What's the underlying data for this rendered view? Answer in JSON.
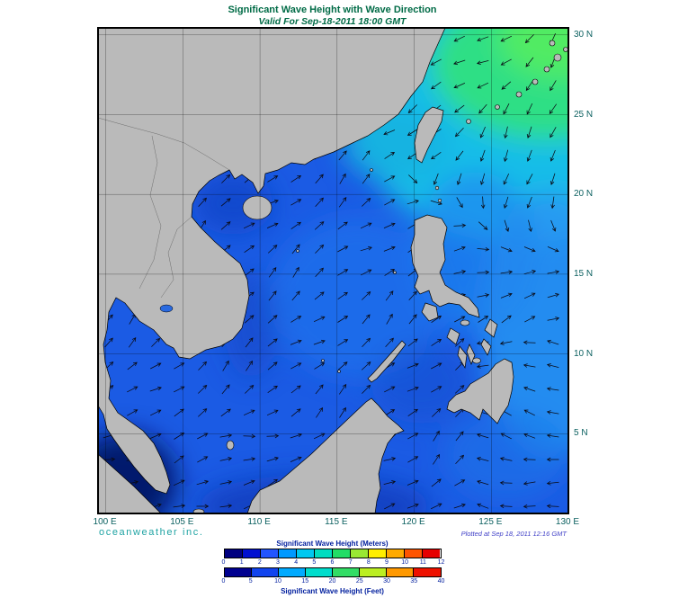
{
  "header": {
    "title": "Significant Wave Height with Wave Direction",
    "subtitle": "Valid For Sep-18-2011 18:00 GMT"
  },
  "map": {
    "lat_labels": [
      "30 N",
      "25 N",
      "20 N",
      "15 N",
      "10 N",
      "5 N"
    ],
    "lon_labels": [
      "100 E",
      "105 E",
      "110 E",
      "115 E",
      "120 E",
      "125 E",
      "130 E"
    ]
  },
  "footer": {
    "branding": "oceanweather inc.",
    "plotted_note": "Plotted at Sep 18, 2011 12:16 GMT"
  },
  "legend": {
    "meters_title": "Significant Wave Height (Meters)",
    "feet_title": "Significant Wave Height (Feet)",
    "meters_ticks": [
      "0",
      "1",
      "2",
      "3",
      "4",
      "5",
      "6",
      "7",
      "8",
      "9",
      "10",
      "11",
      "12"
    ],
    "feet_ticks": [
      "0",
      "5",
      "10",
      "15",
      "20",
      "25",
      "30",
      "35",
      "40"
    ],
    "meters_colors": [
      "#000080",
      "#0010d0",
      "#2255ff",
      "#0099ff",
      "#00c8f0",
      "#00ddc0",
      "#22dd66",
      "#99e833",
      "#ffee00",
      "#ffaa00",
      "#ff5500",
      "#e60000"
    ],
    "feet_colors": [
      "#000090",
      "#1144ee",
      "#00aaff",
      "#00ddcc",
      "#33dd66",
      "#bbee22",
      "#ff9900",
      "#ee1100"
    ]
  },
  "colors": {
    "title_text": "#006B46",
    "axis_text": "#0A5F5F",
    "branding_text": "#1FA3A3",
    "plotted_text": "#4343C8",
    "legend_text": "#001E9E",
    "ocean_base": "#1B5BE4",
    "land": "#BABABA"
  },
  "chart_data": {
    "type": "heatmap",
    "title": "Significant Wave Height with Wave Direction",
    "valid_time": "Sep-18-2011 18:00 GMT",
    "plotted_time": "Sep 18, 2011 12:16 GMT",
    "region": {
      "lon_range_deg_e": [
        100,
        130
      ],
      "lat_range_deg_n": [
        0,
        30
      ]
    },
    "grid_interval_deg": 5,
    "units": [
      "Meters",
      "Feet"
    ],
    "scale_meters": [
      0,
      1,
      2,
      3,
      4,
      5,
      6,
      7,
      8,
      9,
      10,
      11,
      12
    ],
    "scale_feet": [
      0,
      5,
      10,
      15,
      20,
      25,
      30,
      35,
      40
    ],
    "depicted_pattern": [
      "Highest waves (about 3-5 m, green/cyan shading) northeast of Taiwan toward the Ryukyu Islands",
      "Moderate waves (about 1-2 m, blue shading) over the South China Sea and Philippine Sea",
      "Lowest waves (under 0.5 m, dark navy) in the Strait of Malacca and sheltered coastal waters",
      "Wave-direction arrows radiate south-westward from the northeast and trend northeast across the South China Sea"
    ]
  }
}
